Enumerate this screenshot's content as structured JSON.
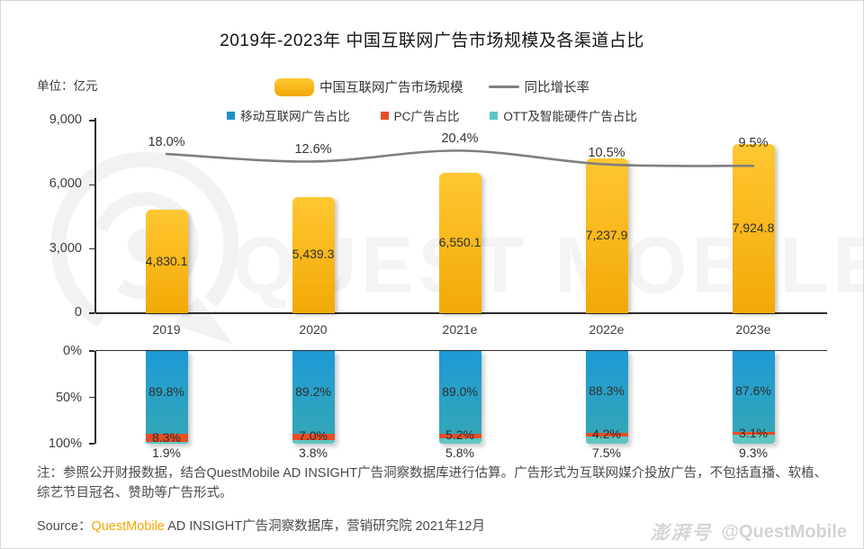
{
  "title": "2019年-2023年 中国互联网广告市场规模及各渠道占比",
  "unit_label": "单位：亿元",
  "legend": {
    "market_size": "中国互联网广告市场规模",
    "growth_rate": "同比增长率",
    "mobile": "移动互联网广告占比",
    "pc": "PC广告占比",
    "ott": "OTT及智能硬件广告占比"
  },
  "colors": {
    "bar_yellow_top": "#FFC732",
    "bar_yellow_bottom": "#F2A906",
    "growth_line": "#7F7F7F",
    "mobile_blue": "#1E90C9",
    "mobile_blue_top": "#1E9AD6",
    "mobile_blue_bottom": "#33A6B8",
    "pc_red": "#E74E27",
    "ott_teal": "#5FC5C1",
    "brand_orange": "#F7A600",
    "axis_dark": "#2E2E2E",
    "watermark_gray": "#F2F2F2"
  },
  "chart_data": [
    {
      "type": "bar",
      "name": "china-internet-ad-market-size",
      "categories": [
        "2019",
        "2020",
        "2021e",
        "2022e",
        "2023e"
      ],
      "series": [
        {
          "name": "中国互联网广告市场规模",
          "type": "bar",
          "values": [
            4830.1,
            5439.3,
            6550.1,
            7237.9,
            7924.8
          ],
          "labels": [
            "4,830.1",
            "5,439.3",
            "6,550.1",
            "7,237.9",
            "7,924.8"
          ]
        },
        {
          "name": "同比增长率",
          "type": "line",
          "values": [
            18.0,
            12.6,
            20.4,
            10.5,
            9.5
          ],
          "labels": [
            "18.0%",
            "12.6%",
            "20.4%",
            "10.5%",
            "9.5%"
          ]
        }
      ],
      "ylabel": "亿元",
      "ylim": [
        0,
        9000
      ],
      "yticks": [
        {
          "value": 9000,
          "label": "9,000"
        },
        {
          "value": 6000,
          "label": "6,000"
        },
        {
          "value": 3000,
          "label": "3,000"
        },
        {
          "value": 0,
          "label": "0"
        }
      ],
      "grid": false,
      "legend_position": "top"
    },
    {
      "type": "bar",
      "name": "channel-share",
      "stacked": true,
      "axis_inverted": true,
      "categories": [
        "2019",
        "2020",
        "2021e",
        "2022e",
        "2023e"
      ],
      "series": [
        {
          "name": "移动互联网广告占比",
          "values": [
            89.8,
            89.2,
            89.0,
            88.3,
            87.6
          ],
          "labels": [
            "89.8%",
            "89.2%",
            "89.0%",
            "88.3%",
            "87.6%"
          ]
        },
        {
          "name": "PC广告占比",
          "values": [
            8.3,
            7.0,
            5.2,
            4.2,
            3.1
          ],
          "labels": [
            "8.3%",
            "7.0%",
            "5.2%",
            "4.2%",
            "3.1%"
          ]
        },
        {
          "name": "OTT及智能硬件广告占比",
          "values": [
            1.9,
            3.8,
            5.8,
            7.5,
            9.3
          ],
          "labels": [
            "1.9%",
            "3.8%",
            "5.8%",
            "7.5%",
            "9.3%"
          ]
        }
      ],
      "ylim": [
        0,
        100
      ],
      "yticks": [
        {
          "value": 0,
          "label": "0%"
        },
        {
          "value": 50,
          "label": "50%"
        },
        {
          "value": 100,
          "label": "100%"
        }
      ],
      "grid": false
    }
  ],
  "footnote": "注：参照公开财报数据，结合QuestMobile AD INSIGHT广告洞察数据库进行估算。广告形式为互联网媒介投放广告，不包括直播、软植、综艺节目冠名、赞助等广告形式。",
  "source": {
    "label": "Source：",
    "brand": "QuestMobile",
    "rest": " AD INSIGHT广告洞察数据库，营销研究院 2021年12月"
  },
  "watermark": {
    "platform": "澎湃号",
    "account": "@QuestMobile",
    "brand_text": "QUEST MOBILE"
  }
}
